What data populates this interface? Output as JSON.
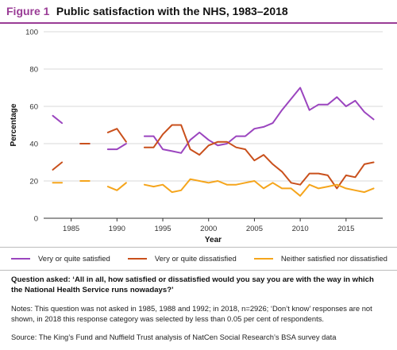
{
  "header": {
    "figure_label": "Figure 1",
    "title": "Public satisfaction with the NHS, 1983–2018"
  },
  "colors": {
    "satisfied": "#9b45bf",
    "dissatisfied": "#c9501c",
    "neither": "#f5a51c",
    "accent": "#9a3c96",
    "gridline": "#d9d9d9"
  },
  "chart_data": {
    "type": "line",
    "title": "Public satisfaction with the NHS, 1983–2018",
    "xlabel": "Year",
    "ylabel": "Percentage",
    "xlim": [
      1982,
      2019
    ],
    "ylim": [
      0,
      100
    ],
    "x_ticks": [
      1985,
      1990,
      1995,
      2000,
      2005,
      2010,
      2015
    ],
    "y_ticks": [
      0,
      20,
      40,
      60,
      80,
      100
    ],
    "grid": "horizontal",
    "legend_position": "bottom",
    "series": [
      {
        "name": "Very or quite satisfied",
        "color_key": "satisfied",
        "points": [
          [
            1983,
            55
          ],
          [
            1984,
            51
          ],
          [
            1985,
            null
          ],
          [
            1986,
            40
          ],
          [
            1987,
            40
          ],
          [
            1988,
            null
          ],
          [
            1989,
            37
          ],
          [
            1990,
            37
          ],
          [
            1991,
            40
          ],
          [
            1992,
            null
          ],
          [
            1993,
            44
          ],
          [
            1994,
            44
          ],
          [
            1995,
            37
          ],
          [
            1996,
            36
          ],
          [
            1997,
            35
          ],
          [
            1998,
            42
          ],
          [
            1999,
            46
          ],
          [
            2000,
            42
          ],
          [
            2001,
            39
          ],
          [
            2002,
            40
          ],
          [
            2003,
            44
          ],
          [
            2004,
            44
          ],
          [
            2005,
            48
          ],
          [
            2006,
            49
          ],
          [
            2007,
            51
          ],
          [
            2008,
            58
          ],
          [
            2009,
            64
          ],
          [
            2010,
            70
          ],
          [
            2011,
            58
          ],
          [
            2012,
            61
          ],
          [
            2013,
            61
          ],
          [
            2014,
            65
          ],
          [
            2015,
            60
          ],
          [
            2016,
            63
          ],
          [
            2017,
            57
          ],
          [
            2018,
            53
          ]
        ]
      },
      {
        "name": "Very or quite dissatisfied",
        "color_key": "dissatisfied",
        "points": [
          [
            1983,
            26
          ],
          [
            1984,
            30
          ],
          [
            1985,
            null
          ],
          [
            1986,
            40
          ],
          [
            1987,
            40
          ],
          [
            1988,
            null
          ],
          [
            1989,
            46
          ],
          [
            1990,
            48
          ],
          [
            1991,
            41
          ],
          [
            1992,
            null
          ],
          [
            1993,
            38
          ],
          [
            1994,
            38
          ],
          [
            1995,
            45
          ],
          [
            1996,
            50
          ],
          [
            1997,
            50
          ],
          [
            1998,
            37
          ],
          [
            1999,
            34
          ],
          [
            2000,
            39
          ],
          [
            2001,
            41
          ],
          [
            2002,
            41
          ],
          [
            2003,
            38
          ],
          [
            2004,
            37
          ],
          [
            2005,
            31
          ],
          [
            2006,
            34
          ],
          [
            2007,
            29
          ],
          [
            2008,
            25
          ],
          [
            2009,
            19
          ],
          [
            2010,
            18
          ],
          [
            2011,
            24
          ],
          [
            2012,
            24
          ],
          [
            2013,
            23
          ],
          [
            2014,
            16
          ],
          [
            2015,
            23
          ],
          [
            2016,
            22
          ],
          [
            2017,
            29
          ],
          [
            2018,
            30
          ]
        ]
      },
      {
        "name": "Neither satisfied nor dissatisfied",
        "color_key": "neither",
        "points": [
          [
            1983,
            19
          ],
          [
            1984,
            19
          ],
          [
            1985,
            null
          ],
          [
            1986,
            20
          ],
          [
            1987,
            20
          ],
          [
            1988,
            null
          ],
          [
            1989,
            17
          ],
          [
            1990,
            15
          ],
          [
            1991,
            19
          ],
          [
            1992,
            null
          ],
          [
            1993,
            18
          ],
          [
            1994,
            17
          ],
          [
            1995,
            18
          ],
          [
            1996,
            14
          ],
          [
            1997,
            15
          ],
          [
            1998,
            21
          ],
          [
            1999,
            20
          ],
          [
            2000,
            19
          ],
          [
            2001,
            20
          ],
          [
            2002,
            18
          ],
          [
            2003,
            18
          ],
          [
            2004,
            19
          ],
          [
            2005,
            20
          ],
          [
            2006,
            16
          ],
          [
            2007,
            19
          ],
          [
            2008,
            16
          ],
          [
            2009,
            16
          ],
          [
            2010,
            12
          ],
          [
            2011,
            18
          ],
          [
            2012,
            16
          ],
          [
            2013,
            17
          ],
          [
            2014,
            18
          ],
          [
            2015,
            16
          ],
          [
            2016,
            15
          ],
          [
            2017,
            14
          ],
          [
            2018,
            16
          ]
        ]
      }
    ]
  },
  "legend": {
    "satisfied": "Very or quite satisfied",
    "dissatisfied": "Very or quite dissatisfied",
    "neither": "Neither satisfied nor dissatisfied"
  },
  "question": "Question asked: ‘All in all, how satisfied or dissatisfied would you say you are with the way in which the National Health Service runs nowadays?’",
  "notes": "Notes: This question was not asked in 1985, 1988 and 1992; in 2018, n=2926; ‘Don’t know’ responses are not shown, in 2018 this response category was selected by less than 0.05 per cent of respondents.",
  "source": "Source: The King’s Fund and Nuffield Trust analysis of NatCen Social Research’s BSA survey data"
}
